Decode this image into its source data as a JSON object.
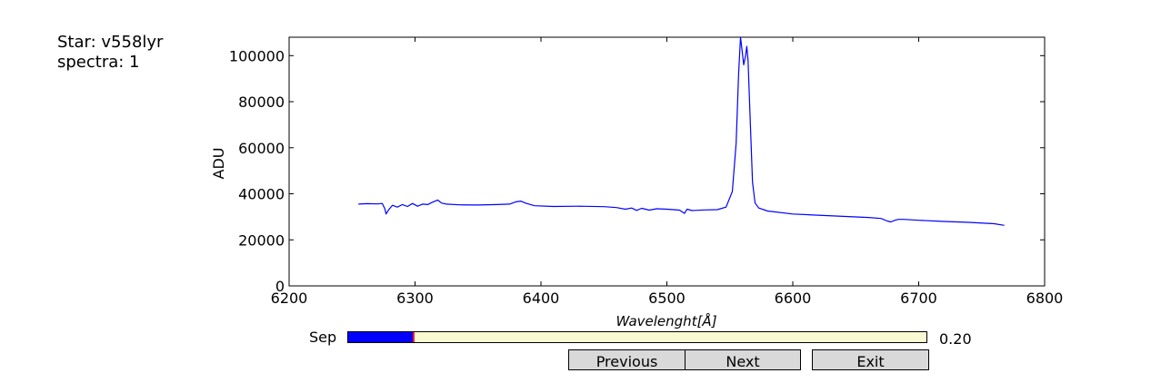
{
  "info": {
    "star_line": "Star: v558lyr",
    "spectra_line": "spectra: 1"
  },
  "chart_data": {
    "type": "line",
    "xlabel": "Wavelenght[Å]",
    "ylabel": "ADU",
    "xlim": [
      6200,
      6800
    ],
    "ylim": [
      0,
      108000
    ],
    "xticks": [
      6200,
      6300,
      6400,
      6500,
      6600,
      6700,
      6800
    ],
    "yticks": [
      0,
      20000,
      40000,
      60000,
      80000,
      100000
    ],
    "line_color": "#0000ff",
    "grid": false,
    "series": [
      {
        "x": [
          6255,
          6262,
          6270,
          6274,
          6276,
          6277,
          6279,
          6282,
          6286,
          6290,
          6294,
          6298,
          6302,
          6306,
          6310,
          6314,
          6318,
          6321,
          6325,
          6335,
          6350,
          6365,
          6375,
          6380,
          6384,
          6388,
          6395,
          6410,
          6430,
          6450,
          6460,
          6467,
          6472,
          6476,
          6480,
          6486,
          6492,
          6500,
          6510,
          6514,
          6516,
          6520,
          6530,
          6540,
          6547,
          6552,
          6555,
          6557,
          6558.5,
          6560,
          6561,
          6562.5,
          6563.5,
          6564.5,
          6566,
          6568,
          6570,
          6573,
          6580,
          6600,
          6620,
          6640,
          6660,
          6670,
          6675,
          6678,
          6681,
          6684,
          6688,
          6700,
          6720,
          6740,
          6760,
          6768
        ],
        "y": [
          35500,
          35700,
          35600,
          35800,
          33500,
          31200,
          33000,
          35000,
          34200,
          35300,
          34500,
          35800,
          34600,
          35500,
          35300,
          36400,
          37300,
          36000,
          35500,
          35200,
          35100,
          35300,
          35500,
          36500,
          36800,
          35900,
          34800,
          34500,
          34600,
          34400,
          34000,
          33300,
          33800,
          32800,
          33700,
          32900,
          33500,
          33300,
          32900,
          31500,
          33300,
          32700,
          33000,
          33100,
          34200,
          41000,
          62000,
          92000,
          108000,
          101000,
          96000,
          100000,
          104000,
          98000,
          75000,
          45000,
          36000,
          33800,
          32500,
          31200,
          30700,
          30200,
          29700,
          29300,
          28200,
          27800,
          28500,
          28900,
          28900,
          28500,
          28000,
          27600,
          27000,
          26300
        ]
      }
    ]
  },
  "slider": {
    "label": "Sep",
    "value_text": "0.20",
    "fraction": 0.113,
    "fill_color": "#0000ff",
    "handle_color": "#ff2020",
    "track_color": "#fafad2"
  },
  "buttons": {
    "previous": "Previous",
    "next": "Next",
    "exit": "Exit"
  }
}
